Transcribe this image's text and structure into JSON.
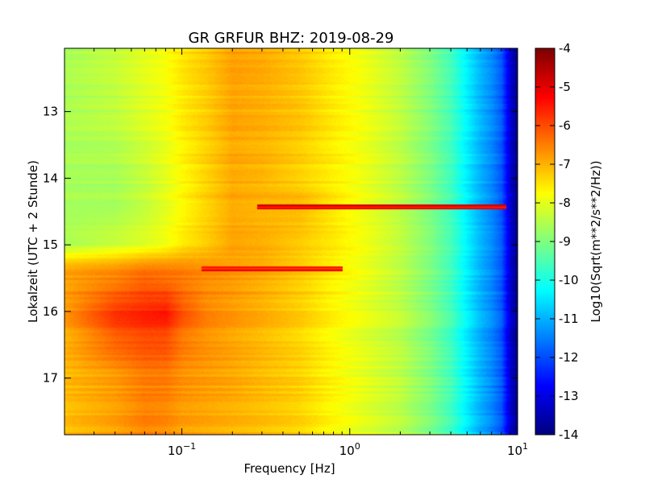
{
  "chart_data": {
    "type": "heatmap",
    "title": "GR GRFUR BHZ: 2019-08-29",
    "xlabel": "Frequency [Hz]",
    "ylabel": "Lokalzeit (UTC + 2 Stunde)",
    "colorbar_label": "Log10(Sqrt(m**2/s**2/Hz))",
    "colormap": "jet",
    "x_scale": "log",
    "xlim": [
      0.02,
      10
    ],
    "ylim": [
      17.85,
      12.05
    ],
    "y_inverted": true,
    "clim": [
      -14,
      -4
    ],
    "x_ticks": [
      {
        "value": 0.1,
        "base": "10",
        "exp": "−1"
      },
      {
        "value": 1,
        "base": "10",
        "exp": "0"
      },
      {
        "value": 10,
        "base": "10",
        "exp": "1"
      }
    ],
    "y_ticks": [
      {
        "value": 13,
        "label": "13"
      },
      {
        "value": 14,
        "label": "14"
      },
      {
        "value": 15,
        "label": "15"
      },
      {
        "value": 16,
        "label": "16"
      },
      {
        "value": 17,
        "label": "17"
      }
    ],
    "colorbar_ticks": [
      "-4",
      "-5",
      "-6",
      "-7",
      "-8",
      "-9",
      "-10",
      "-11",
      "-12",
      "-13",
      "-14"
    ],
    "frequency_bands_hz": [
      0.02,
      0.04,
      0.06,
      0.08,
      0.1,
      0.14,
      0.2,
      0.3,
      0.5,
      0.8,
      1.2,
      2,
      3,
      4,
      5,
      6,
      7,
      8,
      9,
      10
    ],
    "time_knots_h": [
      12.05,
      13.0,
      14.0,
      14.4,
      15.0,
      15.3,
      15.5,
      16.0,
      16.3,
      17.0,
      17.85
    ],
    "psd_log10_at_knots": [
      [
        -8.6,
        -8.6,
        -8.6,
        -8.6,
        -8.6,
        -7.0,
        -6.8,
        -6.8,
        -6.9,
        -7.1,
        -7.1
      ],
      [
        -8.3,
        -8.4,
        -8.6,
        -8.6,
        -8.3,
        -6.8,
        -6.5,
        -5.8,
        -6.0,
        -6.8,
        -6.8
      ],
      [
        -8.0,
        -8.1,
        -8.3,
        -8.3,
        -8.1,
        -6.6,
        -6.2,
        -5.6,
        -5.8,
        -6.5,
        -6.5
      ],
      [
        -7.8,
        -7.9,
        -8.0,
        -8.0,
        -7.9,
        -6.6,
        -6.3,
        -5.5,
        -5.8,
        -6.5,
        -6.6
      ],
      [
        -7.5,
        -7.6,
        -7.7,
        -7.7,
        -7.6,
        -6.6,
        -6.4,
        -6.1,
        -6.3,
        -6.7,
        -6.8
      ],
      [
        -7.2,
        -7.3,
        -7.3,
        -7.3,
        -7.3,
        -6.7,
        -6.6,
        -6.6,
        -6.6,
        -6.8,
        -6.9
      ],
      [
        -6.8,
        -6.9,
        -6.9,
        -6.9,
        -6.9,
        -6.8,
        -6.7,
        -6.8,
        -6.8,
        -6.9,
        -7.0
      ],
      [
        -6.9,
        -7.0,
        -7.0,
        -7.0,
        -7.0,
        -6.9,
        -6.9,
        -7.0,
        -7.0,
        -7.1,
        -7.1
      ],
      [
        -7.2,
        -7.2,
        -7.3,
        -7.0,
        -7.3,
        -7.2,
        -7.2,
        -7.3,
        -7.3,
        -7.3,
        -7.3
      ],
      [
        -7.6,
        -7.6,
        -7.6,
        -7.5,
        -7.6,
        -7.6,
        -7.6,
        -7.7,
        -7.7,
        -7.7,
        -7.7
      ],
      [
        -7.9,
        -7.9,
        -7.9,
        -7.9,
        -7.9,
        -7.9,
        -7.9,
        -8.0,
        -8.0,
        -8.0,
        -8.0
      ],
      [
        -8.4,
        -8.4,
        -8.4,
        -8.4,
        -8.4,
        -8.4,
        -8.4,
        -8.4,
        -8.4,
        -8.4,
        -8.4
      ],
      [
        -9.0,
        -9.0,
        -9.0,
        -9.0,
        -9.0,
        -9.0,
        -9.0,
        -9.0,
        -9.0,
        -9.0,
        -9.0
      ],
      [
        -9.6,
        -9.6,
        -9.6,
        -9.6,
        -9.6,
        -9.6,
        -9.6,
        -9.6,
        -9.6,
        -9.6,
        -9.6
      ],
      [
        -10.4,
        -10.4,
        -10.4,
        -10.4,
        -10.4,
        -10.4,
        -10.4,
        -10.4,
        -10.4,
        -10.4,
        -10.4
      ],
      [
        -11.0,
        -11.0,
        -11.0,
        -11.0,
        -11.0,
        -11.0,
        -11.0,
        -11.0,
        -11.0,
        -11.0,
        -11.0
      ],
      [
        -11.4,
        -11.4,
        -11.4,
        -11.4,
        -11.4,
        -11.4,
        -11.4,
        -11.4,
        -11.4,
        -11.4,
        -11.4
      ],
      [
        -11.9,
        -11.9,
        -11.9,
        -11.9,
        -11.9,
        -11.9,
        -11.9,
        -11.9,
        -11.9,
        -11.9,
        -11.9
      ],
      [
        -13.2,
        -13.2,
        -13.2,
        -13.2,
        -13.2,
        -13.2,
        -13.2,
        -13.2,
        -13.2,
        -13.2,
        -13.2
      ],
      [
        -14.0,
        -14.0,
        -14.0,
        -14.0,
        -14.0,
        -14.0,
        -14.0,
        -14.0,
        -14.0,
        -14.0,
        -14.0
      ]
    ],
    "features": [
      {
        "type": "line",
        "time_h": 14.43,
        "freq_from_hz": 0.28,
        "freq_to_hz": 8.5,
        "value": -5.6
      },
      {
        "type": "line",
        "time_h": 15.35,
        "freq_from_hz": 0.13,
        "freq_to_hz": 0.9,
        "value": -5.9
      }
    ]
  }
}
